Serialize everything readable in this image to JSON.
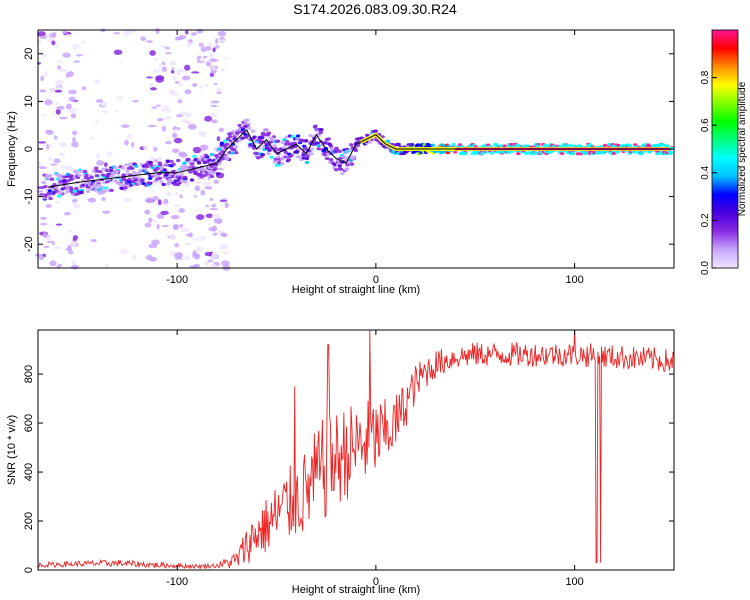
{
  "title": "S174.2026.083.09.30.R24",
  "colors": {
    "snr_line": "#ee2222",
    "ridge": "#000000"
  },
  "chart_data": [
    {
      "type": "heatmap",
      "name": "spectrogram",
      "xlabel": "Height of straight line (km)",
      "ylabel": "Frequency (Hz)",
      "xlim": [
        -170,
        150
      ],
      "ylim": [
        -25,
        25
      ],
      "xticks": [
        -100,
        0,
        100
      ],
      "yticks": [
        -20,
        -10,
        0,
        10,
        20
      ],
      "colorbar": {
        "label": "Normalized spectral amplitude",
        "range": [
          0,
          1
        ],
        "ticks": [
          0.0,
          0.2,
          0.4,
          0.6,
          0.8
        ],
        "tick_labels": [
          "0.0",
          "0.2",
          "0.4",
          "0.6",
          "0.8"
        ],
        "colormap": [
          "#f0e6ff",
          "#c9a6ff",
          "#8a2be2",
          "#4b00e0",
          "#0000ff",
          "#00bfff",
          "#00ffff",
          "#00ff7f",
          "#00ff00",
          "#7fff00",
          "#ffff00",
          "#ff8c00",
          "#ff0000",
          "#ff1493"
        ]
      },
      "ridge": {
        "x": [
          -165,
          -150,
          -140,
          -130,
          -120,
          -110,
          -100,
          -90,
          -80,
          -75,
          -70,
          -65,
          -60,
          -55,
          -50,
          -45,
          -40,
          -35,
          -30,
          -25,
          -20,
          -15,
          -10,
          -5,
          0,
          5,
          10,
          20,
          40,
          60,
          80,
          100,
          120,
          148
        ],
        "y": [
          -8,
          -7,
          -6.5,
          -6,
          -5.5,
          -5,
          -5,
          -4,
          -3,
          0,
          2,
          4,
          0,
          2,
          -1,
          0,
          1,
          -1,
          3,
          0,
          -2,
          -3,
          1,
          2,
          3,
          1,
          0,
          0,
          0,
          0,
          0,
          0,
          0,
          0
        ]
      }
    },
    {
      "type": "line",
      "name": "snr",
      "xlabel": "Height of straight line (km)",
      "ylabel": "SNR (10 * v/v)",
      "xlim": [
        -170,
        150
      ],
      "ylim": [
        0,
        980
      ],
      "xticks": [
        -100,
        0,
        100
      ],
      "yticks": [
        0,
        200,
        400,
        600,
        800
      ],
      "envelope": {
        "x": [
          -170,
          -150,
          -130,
          -110,
          -90,
          -80,
          -70,
          -65,
          -60,
          -55,
          -50,
          -45,
          -40,
          -35,
          -30,
          -25,
          -20,
          -15,
          -10,
          -5,
          0,
          5,
          10,
          15,
          20,
          25,
          30,
          40,
          50,
          60,
          80,
          100,
          120,
          140,
          150
        ],
        "y": [
          20,
          25,
          28,
          20,
          15,
          18,
          40,
          100,
          150,
          180,
          220,
          260,
          280,
          320,
          380,
          420,
          450,
          480,
          500,
          520,
          540,
          560,
          600,
          680,
          760,
          810,
          840,
          870,
          880,
          880,
          880,
          880,
          870,
          860,
          850
        ],
        "noise": [
          10,
          12,
          14,
          12,
          8,
          10,
          40,
          80,
          100,
          120,
          140,
          160,
          160,
          180,
          200,
          220,
          200,
          200,
          180,
          180,
          160,
          140,
          120,
          100,
          80,
          70,
          60,
          50,
          50,
          50,
          50,
          50,
          50,
          50,
          50
        ]
      },
      "spikes": [
        {
          "x": -41,
          "y": 750
        },
        {
          "x": -24,
          "y": 920
        },
        {
          "x": -3,
          "y": 980
        },
        {
          "x": 100,
          "y": 980
        }
      ],
      "dips": [
        {
          "x": 111,
          "y": 30
        },
        {
          "x": 113,
          "y": 30
        }
      ]
    }
  ]
}
